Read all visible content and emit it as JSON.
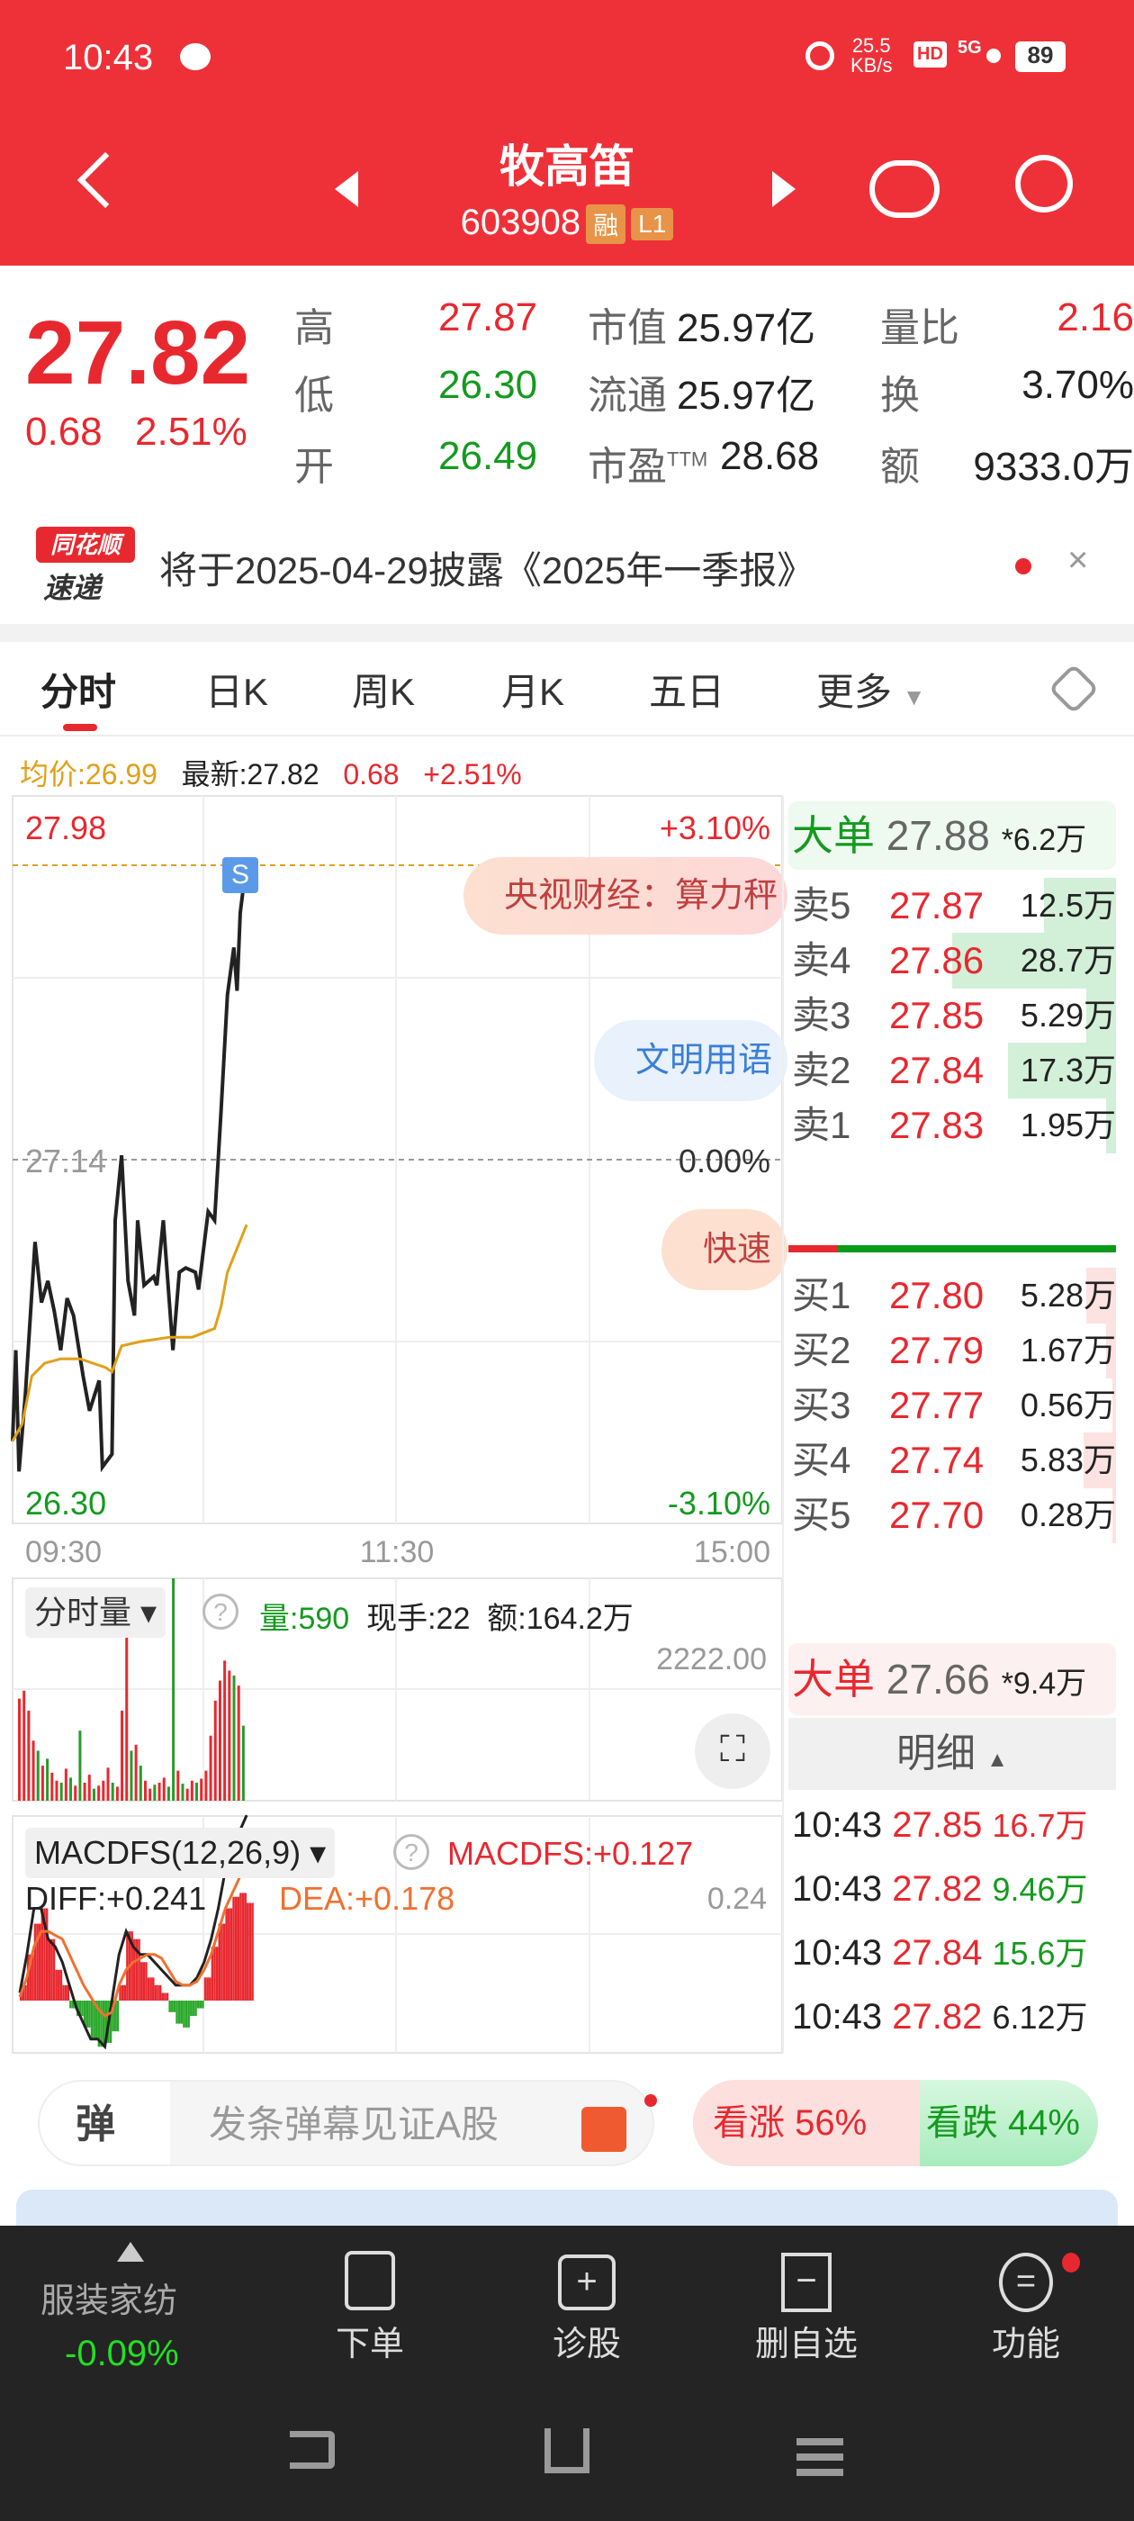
{
  "status_bar": {
    "time": "10:43",
    "net_speed": "25.5",
    "net_unit": "KB/s",
    "hd": "HD",
    "signal": "5G",
    "battery": "89"
  },
  "header": {
    "title": "牧高笛",
    "code": "603908",
    "badges": [
      "融",
      "L1"
    ],
    "icons": [
      "back-icon",
      "prev-stock-icon",
      "next-stock-icon",
      "robot-icon",
      "search-icon"
    ]
  },
  "quote": {
    "price": "27.82",
    "change": "0.68",
    "change_pct": "2.51%",
    "rows": [
      {
        "l1": "高",
        "v1": "27.87",
        "l2": "市值",
        "v2": "25.97亿",
        "l3": "量比",
        "v3": "2.16"
      },
      {
        "l1": "低",
        "v1": "26.30",
        "l2": "流通",
        "v2": "25.97亿",
        "l3": "换",
        "v3": "3.70%"
      },
      {
        "l1": "开",
        "v1": "26.49",
        "l2": "市盈",
        "l2sup": "TTM",
        "v2": "28.68",
        "l3": "额",
        "v3": "9333.0万"
      }
    ]
  },
  "notice": {
    "logo_top": "同花顺",
    "logo_bottom": "速递",
    "text": "将于2025-04-29披露《2025年一季报》"
  },
  "tabs": [
    "分时",
    "日K",
    "周K",
    "月K",
    "五日",
    "更多"
  ],
  "active_tab": "分时",
  "info_line": {
    "avg": "均价:26.99",
    "latest": "最新:27.82",
    "change": "0.68",
    "pct": "+2.51%"
  },
  "overlays": {
    "news1": "央视财经：算力秤",
    "news2": "文明用语",
    "news3": "快速",
    "marker": "S"
  },
  "orderbook": {
    "big_sell": {
      "label": "大单",
      "price": "27.88",
      "vol": "*6.2万"
    },
    "asks": [
      {
        "label": "卖5",
        "price": "27.87",
        "vol": "12.5万",
        "frac": 0.22
      },
      {
        "label": "卖4",
        "price": "27.86",
        "vol": "28.7万",
        "frac": 0.5
      },
      {
        "label": "卖3",
        "price": "27.85",
        "vol": "5.29万",
        "frac": 0.09
      },
      {
        "label": "卖2",
        "price": "27.84",
        "vol": "17.3万",
        "frac": 0.33
      },
      {
        "label": "卖1",
        "price": "27.83",
        "vol": "1.95万",
        "frac": 0.03
      }
    ],
    "bids": [
      {
        "label": "买1",
        "price": "27.80",
        "vol": "5.28万",
        "frac": 0.09
      },
      {
        "label": "买2",
        "price": "27.79",
        "vol": "1.67万",
        "frac": 0.03
      },
      {
        "label": "买3",
        "price": "27.77",
        "vol": "0.56万",
        "frac": 0.01
      },
      {
        "label": "买4",
        "price": "27.74",
        "vol": "5.83万",
        "frac": 0.1
      },
      {
        "label": "买5",
        "price": "27.70",
        "vol": "0.28万",
        "frac": 0.01
      }
    ],
    "buy_ratio": 0.15,
    "big_buy": {
      "label": "大单",
      "price": "27.66",
      "vol": "*9.4万"
    },
    "detail_label": "明细",
    "details": [
      {
        "time": "10:43",
        "price": "27.85",
        "vol": "16.7万",
        "dir": "buy"
      },
      {
        "time": "10:43",
        "price": "27.82",
        "vol": "9.46万",
        "dir": "sell"
      },
      {
        "time": "10:43",
        "price": "27.84",
        "vol": "15.6万",
        "dir": "sell"
      },
      {
        "time": "10:43",
        "price": "27.82",
        "vol": "6.12万",
        "dir": "neutral"
      }
    ]
  },
  "volume_panel": {
    "selector": "分时量",
    "vol": "量:590",
    "hand": "现手:22",
    "amount": "额:164.2万",
    "max": "2222.00"
  },
  "macd_panel": {
    "selector": "MACDFS(12,26,9)",
    "macdfs": "MACDFS:+0.127",
    "diff": "DIFF:+0.241",
    "dea": "DEA:+0.178",
    "max": "0.24"
  },
  "chart_data": [
    {
      "type": "line",
      "title": "",
      "ylim": [
        26.3,
        27.98
      ],
      "prev_close": 27.14,
      "y_tick_labels": [
        "27.98",
        "27.14",
        "26.30"
      ],
      "pct_labels": [
        "+3.10%",
        "0.00%",
        "-3.10%"
      ],
      "x_tick_labels": [
        "09:30",
        "11:30",
        "15:00"
      ],
      "grid": true,
      "series": [
        {
          "key": "price",
          "color": "#222222",
          "points": [
            [
              "09:30",
              26.49
            ],
            [
              "09:31",
              26.7
            ],
            [
              "09:32",
              26.42
            ],
            [
              "09:34",
              26.6
            ],
            [
              "09:37",
              26.95
            ],
            [
              "09:39",
              26.81
            ],
            [
              "09:41",
              26.86
            ],
            [
              "09:43",
              26.79
            ],
            [
              "09:45",
              26.7
            ],
            [
              "09:47",
              26.82
            ],
            [
              "09:49",
              26.78
            ],
            [
              "09:52",
              26.64
            ],
            [
              "09:54",
              26.56
            ],
            [
              "09:57",
              26.63
            ],
            [
              "09:58",
              26.43
            ],
            [
              "10:01",
              26.46
            ],
            [
              "10:02",
              27.0
            ],
            [
              "10:04",
              27.15
            ],
            [
              "10:06",
              26.86
            ],
            [
              "10:08",
              26.78
            ],
            [
              "10:09",
              27.0
            ],
            [
              "10:11",
              26.85
            ],
            [
              "10:14",
              26.87
            ],
            [
              "10:15",
              26.85
            ],
            [
              "10:17",
              27.0
            ],
            [
              "10:20",
              26.7
            ],
            [
              "10:22",
              26.88
            ],
            [
              "10:24",
              26.89
            ],
            [
              "10:27",
              26.88
            ],
            [
              "10:28",
              26.84
            ],
            [
              "10:31",
              27.02
            ],
            [
              "10:33",
              27.0
            ],
            [
              "10:35",
              27.25
            ],
            [
              "10:37",
              27.52
            ],
            [
              "10:39",
              27.63
            ],
            [
              "10:40",
              27.53
            ],
            [
              "10:41",
              27.71
            ],
            [
              "10:43",
              27.83
            ]
          ]
        },
        {
          "key": "avg",
          "color": "#e0a018",
          "points": [
            [
              "09:30",
              26.49
            ],
            [
              "09:33",
              26.53
            ],
            [
              "09:36",
              26.64
            ],
            [
              "09:40",
              26.67
            ],
            [
              "09:45",
              26.68
            ],
            [
              "09:51",
              26.68
            ],
            [
              "09:59",
              26.66
            ],
            [
              "10:01",
              26.65
            ],
            [
              "10:04",
              26.71
            ],
            [
              "10:10",
              26.72
            ],
            [
              "10:19",
              26.73
            ],
            [
              "10:26",
              26.73
            ],
            [
              "10:33",
              26.75
            ],
            [
              "10:35",
              26.8
            ],
            [
              "10:37",
              26.88
            ],
            [
              "10:43",
              26.99
            ]
          ]
        }
      ]
    },
    {
      "type": "bar",
      "title": "分时量",
      "ylim": [
        0,
        2222
      ],
      "values": [
        1020,
        1100,
        900,
        600,
        500,
        350,
        420,
        280,
        200,
        180,
        320,
        230,
        150,
        700,
        180,
        260,
        120,
        150,
        200,
        330,
        180,
        140,
        900,
        1900,
        500,
        560,
        350,
        200,
        120,
        160,
        180,
        230,
        140,
        2222,
        300,
        170,
        120,
        200,
        180,
        220,
        300,
        650,
        1000,
        1200,
        1400,
        1300,
        1250,
        1150,
        750
      ],
      "colors": [
        "r",
        "r",
        "r",
        "r",
        "g",
        "r",
        "g",
        "r",
        "r",
        "g",
        "r",
        "g",
        "r",
        "g",
        "r",
        "r",
        "g",
        "r",
        "r",
        "r",
        "g",
        "r",
        "r",
        "r",
        "g",
        "r",
        "g",
        "r",
        "r",
        "g",
        "r",
        "r",
        "g",
        "g",
        "r",
        "g",
        "r",
        "r",
        "g",
        "r",
        "r",
        "r",
        "r",
        "r",
        "r",
        "r",
        "g",
        "r",
        "g"
      ]
    },
    {
      "type": "bar",
      "title": "MACDFS(12,26,9)",
      "ylim": [
        -0.07,
        0.24
      ],
      "hist": [
        0.02,
        0.06,
        0.1,
        0.12,
        0.08,
        0.04,
        0.02,
        -0.01,
        -0.02,
        -0.035,
        -0.05,
        -0.06,
        -0.055,
        -0.04,
        0.02,
        0.09,
        0.08,
        0.05,
        0.03,
        0.02,
        0.01,
        -0.015,
        -0.03,
        -0.035,
        -0.02,
        -0.01,
        0.03,
        0.07,
        0.1,
        0.12,
        0.135,
        0.14,
        0.127
      ],
      "diff": [
        0.01,
        0.06,
        0.12,
        0.12,
        0.08,
        0.07,
        0.05,
        0.02,
        -0.01,
        -0.03,
        -0.05,
        -0.05,
        -0.06,
        0.0,
        0.06,
        0.09,
        0.07,
        0.06,
        0.06,
        0.05,
        0.04,
        0.03,
        0.02,
        0.02,
        0.02,
        0.03,
        0.05,
        0.08,
        0.12,
        0.17,
        0.2,
        0.22,
        0.241
      ],
      "dea": [
        0.005,
        0.03,
        0.07,
        0.09,
        0.09,
        0.085,
        0.08,
        0.06,
        0.04,
        0.02,
        0.005,
        -0.01,
        -0.02,
        -0.015,
        0.02,
        0.04,
        0.05,
        0.055,
        0.06,
        0.06,
        0.055,
        0.04,
        0.025,
        0.02,
        0.02,
        0.025,
        0.04,
        0.06,
        0.09,
        0.12,
        0.14,
        0.16,
        0.178
      ]
    }
  ],
  "sentiment": {
    "danmu_icon": "弹",
    "placeholder": "发条弹幕见证A股",
    "up": "看涨 56%",
    "down": "看跌 44%",
    "up_frac": 0.56
  },
  "bottom_nav": {
    "sector": "服装家纺",
    "sector_pct": "-0.09%",
    "items": [
      "下单",
      "诊股",
      "删自选",
      "功能"
    ]
  }
}
